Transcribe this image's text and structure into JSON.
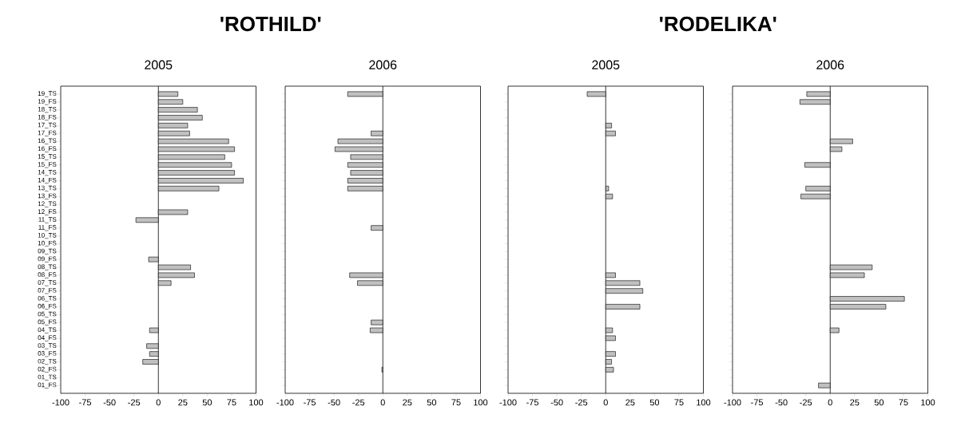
{
  "chart_data": [
    {
      "type": "bar",
      "orientation": "horizontal",
      "title": "'ROTHILD'",
      "subtitle": "2005",
      "categories": [
        "19_TS",
        "19_FS",
        "18_TS",
        "18_FS",
        "17_TS",
        "17_FS",
        "16_TS",
        "16_FS",
        "15_TS",
        "15_FS",
        "14_TS",
        "14_FS",
        "13_TS",
        "13_FS",
        "12_TS",
        "12_FS",
        "11_TS",
        "11_FS",
        "10_TS",
        "10_FS",
        "09_TS",
        "09_FS",
        "08_TS",
        "08_FS",
        "07_TS",
        "07_FS",
        "06_TS",
        "06_FS",
        "05_TS",
        "05_FS",
        "04_TS",
        "04_FS",
        "03_TS",
        "03_FS",
        "02_TS",
        "02_FS",
        "01_TS",
        "01_FS"
      ],
      "values": [
        20,
        25,
        40,
        45,
        30,
        32,
        72,
        78,
        68,
        75,
        78,
        87,
        62,
        null,
        null,
        30,
        -23,
        null,
        null,
        null,
        null,
        -10,
        33,
        37,
        13,
        null,
        null,
        null,
        null,
        null,
        -9,
        null,
        -12,
        -9,
        -16,
        null,
        null,
        null
      ],
      "color": "#c0c0c0",
      "xlim": [
        -100,
        100
      ],
      "xticks": [
        -100,
        -75,
        -50,
        -25,
        0,
        25,
        50,
        75,
        100
      ],
      "ref_lines": [
        {
          "axis": "x",
          "value": 0
        }
      ]
    },
    {
      "type": "bar",
      "orientation": "horizontal",
      "subtitle": "2006",
      "values": [
        -36,
        null,
        null,
        null,
        null,
        -12,
        -46,
        -49,
        -33,
        -36,
        -33,
        -36,
        -36,
        null,
        null,
        null,
        null,
        -12,
        null,
        null,
        null,
        null,
        null,
        -34,
        -26,
        null,
        null,
        null,
        null,
        -12,
        -13,
        null,
        null,
        null,
        null,
        -1,
        null,
        null
      ],
      "color": "#c0c0c0",
      "xlim": [
        -100,
        100
      ],
      "xticks": [
        -100,
        -75,
        -50,
        -25,
        0,
        25,
        50,
        75,
        100
      ],
      "ref_lines": [
        {
          "axis": "x",
          "value": 0
        }
      ],
      "tick_labels": "x"
    },
    {
      "type": "bar",
      "orientation": "horizontal",
      "title": "'RODELIKA'",
      "subtitle": "2005",
      "values": [
        -19,
        null,
        null,
        null,
        6,
        10,
        null,
        null,
        null,
        null,
        null,
        null,
        3,
        7,
        null,
        null,
        null,
        null,
        null,
        null,
        null,
        null,
        null,
        10,
        35,
        38,
        null,
        35,
        null,
        null,
        7,
        10,
        null,
        10,
        6,
        8,
        null,
        null
      ],
      "color": "#c0c0c0",
      "xlim": [
        -100,
        100
      ],
      "xticks": [
        -100,
        -75,
        -50,
        -25,
        0,
        25,
        50,
        75,
        100
      ],
      "ref_lines": [
        {
          "axis": "x",
          "value": 0
        }
      ],
      "tick_labels": "x"
    },
    {
      "type": "bar",
      "orientation": "horizontal",
      "subtitle": "2006",
      "values": [
        -24,
        -31,
        null,
        null,
        null,
        null,
        23,
        12,
        null,
        -26,
        null,
        null,
        -25,
        -30,
        null,
        null,
        null,
        null,
        null,
        null,
        null,
        null,
        43,
        35,
        null,
        null,
        76,
        57,
        null,
        null,
        9,
        null,
        null,
        null,
        null,
        null,
        null,
        -12
      ],
      "color": "#c0c0c0",
      "xlim": [
        -100,
        100
      ],
      "xticks": [
        -100,
        -75,
        -50,
        -25,
        0,
        25,
        50,
        75,
        100
      ],
      "ref_lines": [
        {
          "axis": "x",
          "value": 0
        }
      ],
      "tick_labels": "x"
    }
  ]
}
